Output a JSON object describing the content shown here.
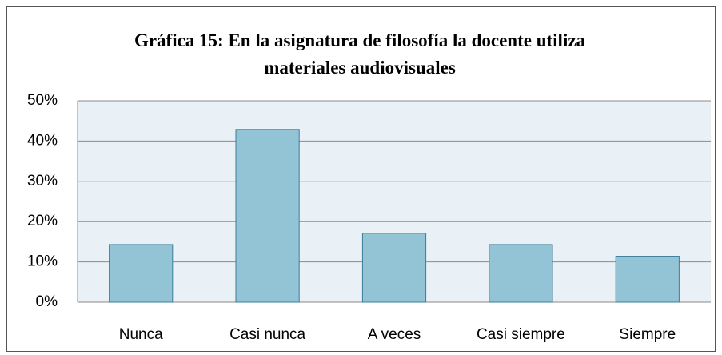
{
  "chart_data": {
    "type": "bar",
    "title": "Gráfica 15: En la asignatura de filosofía la docente utiliza materiales audiovisuales",
    "categories": [
      "Nunca",
      "Casi nunca",
      "A veces",
      "Casi siempre",
      "Siempre"
    ],
    "values": [
      14.3,
      42.9,
      17.1,
      14.3,
      11.4
    ],
    "color": "#93c4d6",
    "ylim": [
      0,
      50
    ],
    "yticks": [
      {
        "value": 0,
        "label": "0%"
      },
      {
        "value": 10,
        "label": "10%"
      },
      {
        "value": 20,
        "label": "20%"
      },
      {
        "value": 30,
        "label": "30%"
      },
      {
        "value": 40,
        "label": "40%"
      },
      {
        "value": 50,
        "label": "50%"
      }
    ],
    "grid": true
  }
}
